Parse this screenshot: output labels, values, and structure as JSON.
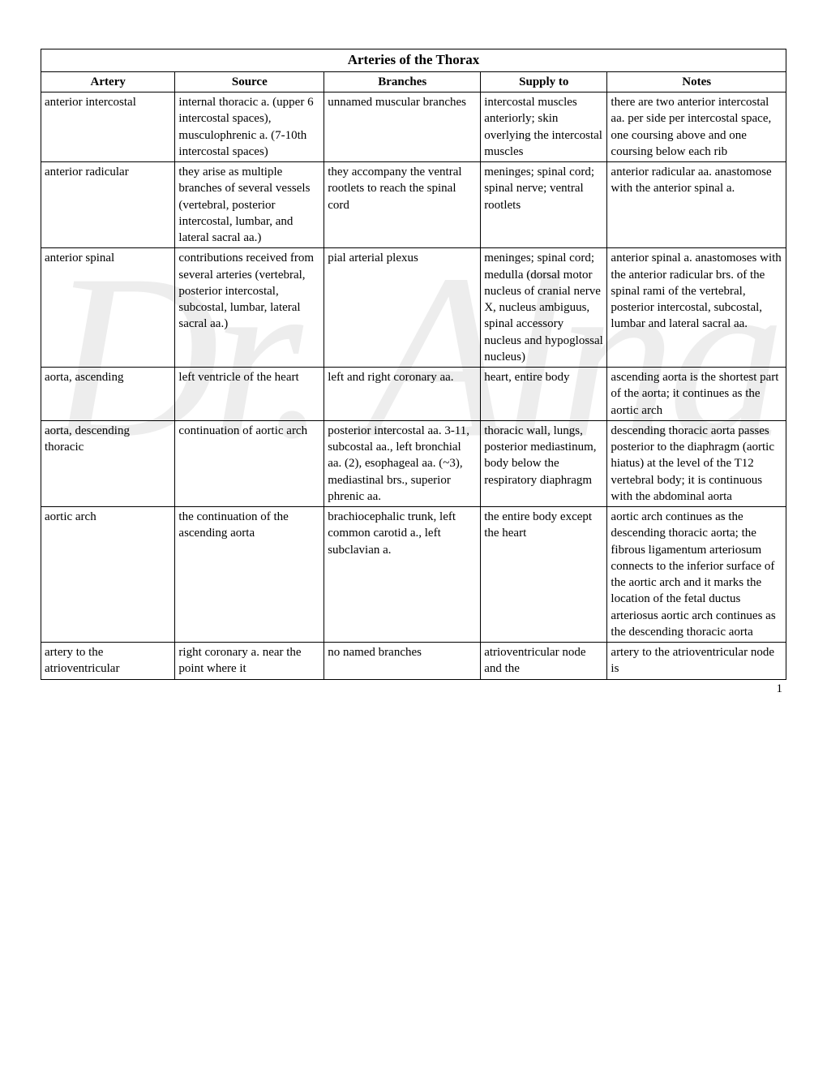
{
  "watermark": "Dr. Alna",
  "page_number": "1",
  "table": {
    "title": "Arteries of the Thorax",
    "headers": [
      "Artery",
      "Source",
      "Branches",
      "Supply to",
      "Notes"
    ],
    "col_widths_pct": [
      18,
      20,
      21,
      17,
      24
    ],
    "rows": [
      {
        "artery": "anterior intercostal",
        "source": "internal thoracic a. (upper 6 intercostal spaces), musculophrenic a. (7-10th intercostal spaces)",
        "branches": "unnamed muscular branches",
        "supply": "intercostal muscles anteriorly; skin overlying the intercostal muscles",
        "notes": "there are two anterior intercostal aa. per side per intercostal space, one coursing above and one coursing below each rib"
      },
      {
        "artery": "anterior radicular",
        "source": "they arise as multiple branches of several vessels (vertebral, posterior intercostal, lumbar, and lateral sacral aa.)",
        "branches": "they accompany the ventral rootlets to reach the spinal cord",
        "supply": "meninges; spinal cord; spinal nerve; ventral rootlets",
        "notes": "anterior radicular aa. anastomose with the anterior spinal a."
      },
      {
        "artery": "anterior spinal",
        "source": "contributions received from several arteries (vertebral, posterior intercostal, subcostal, lumbar, lateral sacral aa.)",
        "branches": "pial arterial plexus",
        "supply": "meninges; spinal cord; medulla (dorsal motor nucleus of cranial nerve X, nucleus ambiguus, spinal accessory nucleus and hypoglossal nucleus)",
        "notes": "anterior spinal a. anastomoses with the anterior radicular brs. of the spinal rami of the vertebral, posterior intercostal, subcostal, lumbar and lateral sacral aa."
      },
      {
        "artery": "aorta, ascending",
        "source": "left ventricle of the heart",
        "branches": "left and right coronary aa.",
        "supply": "heart, entire body",
        "notes": "ascending aorta is the shortest part of the aorta; it continues as the aortic arch"
      },
      {
        "artery": "aorta, descending thoracic",
        "source": "continuation of aortic arch",
        "branches": "posterior intercostal aa. 3-11, subcostal aa., left bronchial aa. (2), esophageal aa. (~3), mediastinal brs., superior phrenic aa.",
        "supply": "thoracic wall, lungs, posterior mediastinum, body below the respiratory diaphragm",
        "notes": "descending thoracic aorta passes posterior to the diaphragm (aortic hiatus) at the level of the T12 vertebral body; it is continuous with the abdominal aorta"
      },
      {
        "artery": "aortic arch",
        "source": "the continuation of the ascending aorta",
        "branches": "brachiocephalic trunk, left common carotid a., left subclavian a.",
        "supply": "the entire body except the heart",
        "notes": "aortic arch continues as the descending thoracic aorta; the fibrous ligamentum arteriosum connects to the inferior surface of the aortic arch and it marks the location of the fetal ductus arteriosus aortic arch continues as the descending thoracic aorta"
      },
      {
        "artery": "artery to the atrioventricular",
        "source": "right coronary a. near the point where it",
        "branches": "no named branches",
        "supply": "atrioventricular node and the",
        "notes": "artery to the atrioventricular node is"
      }
    ]
  }
}
